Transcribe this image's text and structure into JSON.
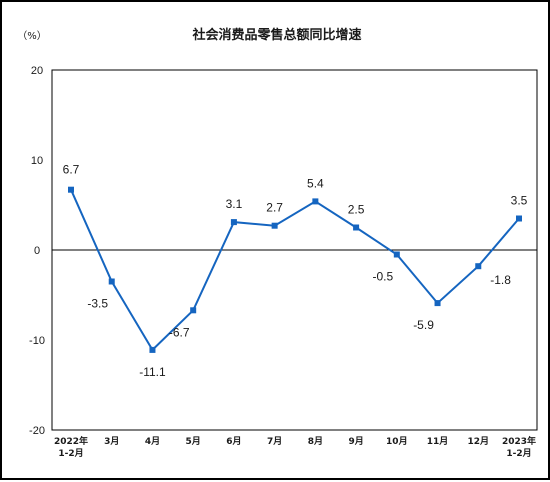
{
  "chart_data": {
    "type": "line",
    "title": "社会消费品零售总额同比增速",
    "unit_label": "（%）",
    "categories": [
      [
        "2022年",
        "1-2月"
      ],
      [
        "3月"
      ],
      [
        "4月"
      ],
      [
        "5月"
      ],
      [
        "6月"
      ],
      [
        "7月"
      ],
      [
        "8月"
      ],
      [
        "9月"
      ],
      [
        "10月"
      ],
      [
        "11月"
      ],
      [
        "12月"
      ],
      [
        "2023年",
        "1-2月"
      ]
    ],
    "values": [
      6.7,
      -3.5,
      -11.1,
      -6.7,
      3.1,
      2.7,
      5.4,
      2.5,
      -0.5,
      -5.9,
      -1.8,
      3.5
    ],
    "data_labels": [
      "6.7",
      "-3.5",
      "-11.1",
      "-6.7",
      "3.1",
      "2.7",
      "5.4",
      "2.5",
      "-0.5",
      "-5.9",
      "-1.8",
      "3.5"
    ],
    "ylim": [
      -20,
      20
    ],
    "yticks": [
      20,
      10,
      0,
      -10,
      -20
    ],
    "grid": false,
    "line_color": "#1565c0"
  }
}
